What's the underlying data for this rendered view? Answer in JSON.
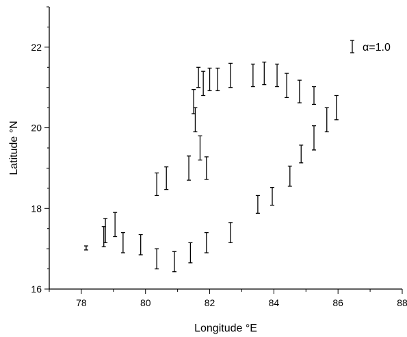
{
  "chart_data": {
    "type": "scatter",
    "xlabel": "Longitude °E",
    "ylabel": "Latitude °N",
    "xlim": [
      77,
      88
    ],
    "ylim": [
      16,
      23
    ],
    "x_ticks_major": [
      78,
      80,
      82,
      84,
      86,
      88
    ],
    "y_ticks_major": [
      16,
      18,
      20,
      22
    ],
    "grid": false,
    "legend_position": "top-right",
    "series": [
      {
        "name": "α=1.0",
        "marker": "error-bar",
        "points": [
          {
            "x": 78.15,
            "y": 17.02,
            "err": 0.05
          },
          {
            "x": 78.7,
            "y": 17.3,
            "err": 0.25
          },
          {
            "x": 78.75,
            "y": 17.45,
            "err": 0.3
          },
          {
            "x": 79.05,
            "y": 17.6,
            "err": 0.3
          },
          {
            "x": 79.3,
            "y": 17.15,
            "err": 0.25
          },
          {
            "x": 79.85,
            "y": 17.1,
            "err": 0.25
          },
          {
            "x": 80.35,
            "y": 16.75,
            "err": 0.25
          },
          {
            "x": 80.9,
            "y": 16.68,
            "err": 0.25
          },
          {
            "x": 81.4,
            "y": 16.9,
            "err": 0.25
          },
          {
            "x": 81.9,
            "y": 17.15,
            "err": 0.25
          },
          {
            "x": 82.65,
            "y": 17.4,
            "err": 0.25
          },
          {
            "x": 83.5,
            "y": 18.1,
            "err": 0.22
          },
          {
            "x": 83.95,
            "y": 18.3,
            "err": 0.22
          },
          {
            "x": 84.5,
            "y": 18.8,
            "err": 0.25
          },
          {
            "x": 84.85,
            "y": 19.35,
            "err": 0.22
          },
          {
            "x": 85.25,
            "y": 19.75,
            "err": 0.3
          },
          {
            "x": 85.65,
            "y": 20.2,
            "err": 0.3
          },
          {
            "x": 85.95,
            "y": 20.5,
            "err": 0.3
          },
          {
            "x": 85.25,
            "y": 20.8,
            "err": 0.22
          },
          {
            "x": 84.8,
            "y": 20.9,
            "err": 0.28
          },
          {
            "x": 84.4,
            "y": 21.05,
            "err": 0.3
          },
          {
            "x": 84.1,
            "y": 21.3,
            "err": 0.28
          },
          {
            "x": 83.7,
            "y": 21.35,
            "err": 0.28
          },
          {
            "x": 83.35,
            "y": 21.3,
            "err": 0.28
          },
          {
            "x": 82.65,
            "y": 21.3,
            "err": 0.3
          },
          {
            "x": 82.25,
            "y": 21.2,
            "err": 0.28
          },
          {
            "x": 82.0,
            "y": 21.2,
            "err": 0.28
          },
          {
            "x": 81.8,
            "y": 21.1,
            "err": 0.3
          },
          {
            "x": 81.65,
            "y": 21.25,
            "err": 0.25
          },
          {
            "x": 81.5,
            "y": 20.65,
            "err": 0.3
          },
          {
            "x": 81.55,
            "y": 20.2,
            "err": 0.3
          },
          {
            "x": 81.7,
            "y": 19.5,
            "err": 0.3
          },
          {
            "x": 81.9,
            "y": 19.0,
            "err": 0.28
          },
          {
            "x": 81.35,
            "y": 19.0,
            "err": 0.3
          },
          {
            "x": 80.65,
            "y": 18.75,
            "err": 0.28
          },
          {
            "x": 80.35,
            "y": 18.6,
            "err": 0.28
          }
        ]
      }
    ]
  }
}
